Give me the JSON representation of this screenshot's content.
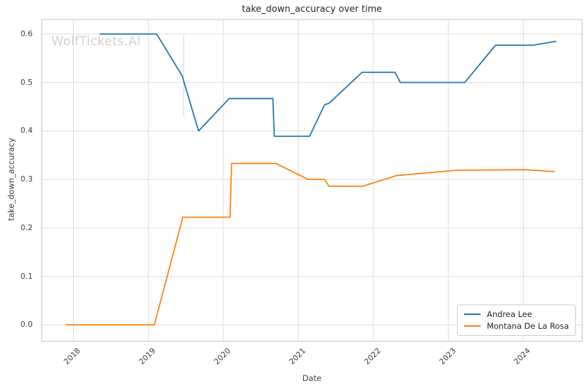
{
  "watermark": "WolfTickets.AI",
  "colors": {
    "background": "#ffffff",
    "grid": "#dcdcdc",
    "spine": "#c8c8c8",
    "title_text": "#262626",
    "tick_text": "#3b3b3b",
    "watermark_text": "#d0d0d0",
    "series_blue": "#1f77b4",
    "series_orange": "#ff7f0e",
    "event_marker": "#c9dff0"
  },
  "chart_data": {
    "type": "line",
    "title": "take_down_accuracy over time",
    "xlabel": "Date",
    "ylabel": "take_down_accuracy",
    "x_unit": "decimal_year",
    "xlim": [
      2017.578,
      2024.785
    ],
    "ylim": [
      -0.034,
      0.63
    ],
    "xticks": [
      2018,
      2019,
      2020,
      2021,
      2022,
      2023,
      2024
    ],
    "yticks": [
      0.0,
      0.1,
      0.2,
      0.3,
      0.4,
      0.5,
      0.6
    ],
    "grid": true,
    "legend_position": "lower right",
    "series": [
      {
        "name": "Andrea Lee",
        "color": "#1f77b4",
        "points": [
          [
            2018.35,
            0.6
          ],
          [
            2019.11,
            0.6
          ],
          [
            2019.45,
            0.514
          ],
          [
            2019.67,
            0.4
          ],
          [
            2020.08,
            0.467
          ],
          [
            2020.66,
            0.467
          ],
          [
            2020.68,
            0.389
          ],
          [
            2021.15,
            0.389
          ],
          [
            2021.35,
            0.454
          ],
          [
            2021.41,
            0.457
          ],
          [
            2021.85,
            0.521
          ],
          [
            2022.29,
            0.521
          ],
          [
            2022.36,
            0.5
          ],
          [
            2023.22,
            0.5
          ],
          [
            2023.63,
            0.577
          ],
          [
            2024.13,
            0.577
          ],
          [
            2024.44,
            0.585
          ]
        ]
      },
      {
        "name": "Montana De La Rosa",
        "color": "#ff7f0e",
        "points": [
          [
            2017.9,
            0.0
          ],
          [
            2019.08,
            0.0
          ],
          [
            2019.46,
            0.222
          ],
          [
            2020.09,
            0.222
          ],
          [
            2020.11,
            0.333
          ],
          [
            2020.7,
            0.333
          ],
          [
            2021.13,
            0.3
          ],
          [
            2021.35,
            0.3
          ],
          [
            2021.41,
            0.286
          ],
          [
            2021.86,
            0.286
          ],
          [
            2022.31,
            0.308
          ],
          [
            2023.12,
            0.319
          ],
          [
            2024.04,
            0.32
          ],
          [
            2024.42,
            0.316
          ]
        ]
      }
    ],
    "annotations": [
      {
        "type": "vline_segment",
        "x": 2019.47,
        "y0": 0.429,
        "y1": 0.598,
        "color": "#c9dff0"
      }
    ]
  }
}
